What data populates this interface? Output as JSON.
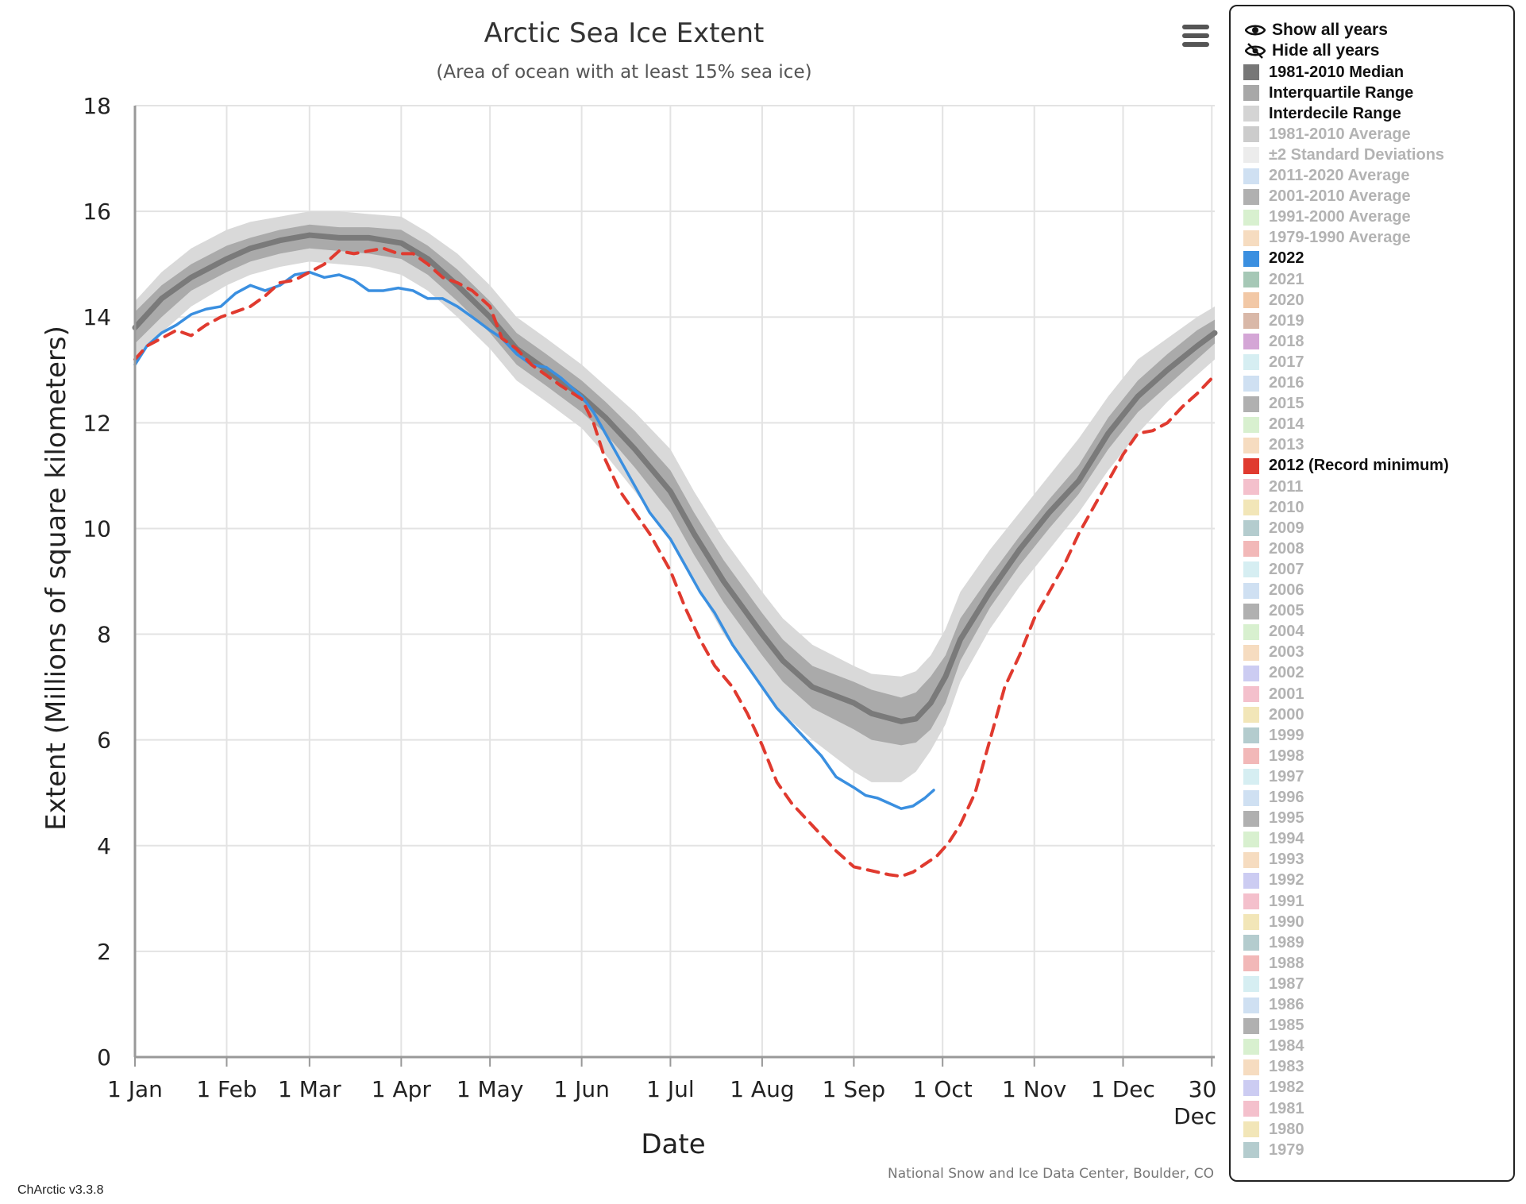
{
  "chart_data": {
    "type": "line",
    "title": "Arctic Sea Ice Extent",
    "subtitle": "(Area of ocean with at least 15% sea ice)",
    "xlabel": "Date",
    "ylabel": "Extent (Millions of square kilometers)",
    "credit": "National Snow and Ice Data Center, Boulder, CO",
    "xlim": [
      1,
      366
    ],
    "ylim": [
      0,
      18
    ],
    "yticks": [
      0,
      2,
      4,
      6,
      8,
      10,
      12,
      14,
      16,
      18
    ],
    "xticks": [
      {
        "day": 1,
        "label": "1 Jan"
      },
      {
        "day": 32,
        "label": "1 Feb"
      },
      {
        "day": 60,
        "label": "1 Mar"
      },
      {
        "day": 91,
        "label": "1 Apr"
      },
      {
        "day": 121,
        "label": "1 May"
      },
      {
        "day": 152,
        "label": "1 Jun"
      },
      {
        "day": 182,
        "label": "1 Jul"
      },
      {
        "day": 213,
        "label": "1 Aug"
      },
      {
        "day": 244,
        "label": "1 Sep"
      },
      {
        "day": 274,
        "label": "1 Oct"
      },
      {
        "day": 305,
        "label": "1 Nov"
      },
      {
        "day": 335,
        "label": "1 Dec"
      },
      {
        "day": 365,
        "label": "30 Dec"
      }
    ],
    "grid": true,
    "legend_position": "right",
    "median": {
      "name": "1981-2010 Median",
      "color": "#7a7a7a",
      "x": [
        1,
        10,
        20,
        32,
        40,
        50,
        60,
        70,
        80,
        91,
        100,
        110,
        121,
        130,
        140,
        152,
        160,
        170,
        182,
        190,
        200,
        213,
        220,
        230,
        244,
        250,
        260,
        265,
        270,
        275,
        280,
        290,
        300,
        310,
        320,
        330,
        340,
        350,
        360,
        366
      ],
      "y": [
        13.8,
        14.35,
        14.75,
        15.1,
        15.3,
        15.45,
        15.55,
        15.5,
        15.5,
        15.4,
        15.1,
        14.6,
        14.0,
        13.4,
        13.0,
        12.5,
        12.1,
        11.5,
        10.7,
        9.9,
        9.0,
        8.0,
        7.5,
        7.0,
        6.7,
        6.5,
        6.35,
        6.4,
        6.7,
        7.2,
        7.9,
        8.8,
        9.6,
        10.3,
        10.9,
        11.8,
        12.5,
        13.0,
        13.45,
        13.7
      ]
    },
    "interquartile": {
      "name": "Interquartile Range",
      "color": "#aaaaaa",
      "x": [
        1,
        10,
        20,
        32,
        40,
        50,
        60,
        70,
        80,
        91,
        100,
        110,
        121,
        130,
        140,
        152,
        160,
        170,
        182,
        190,
        200,
        213,
        220,
        230,
        244,
        250,
        260,
        265,
        270,
        275,
        280,
        290,
        300,
        310,
        320,
        330,
        340,
        350,
        360,
        366
      ],
      "lower": [
        13.5,
        14.0,
        14.5,
        14.85,
        15.05,
        15.2,
        15.3,
        15.25,
        15.2,
        15.1,
        14.8,
        14.3,
        13.7,
        13.1,
        12.7,
        12.2,
        11.8,
        11.15,
        10.3,
        9.5,
        8.6,
        7.6,
        7.1,
        6.6,
        6.2,
        6.0,
        5.9,
        5.95,
        6.2,
        6.7,
        7.5,
        8.5,
        9.3,
        10.0,
        10.65,
        11.5,
        12.2,
        12.7,
        13.2,
        13.5
      ],
      "upper": [
        14.1,
        14.6,
        15.0,
        15.35,
        15.5,
        15.65,
        15.75,
        15.7,
        15.7,
        15.65,
        15.35,
        14.9,
        14.3,
        13.7,
        13.3,
        12.8,
        12.4,
        11.85,
        11.1,
        10.3,
        9.4,
        8.4,
        7.9,
        7.4,
        7.1,
        6.95,
        6.8,
        6.9,
        7.2,
        7.6,
        8.3,
        9.1,
        9.85,
        10.55,
        11.2,
        12.1,
        12.8,
        13.3,
        13.75,
        13.95
      ]
    },
    "interdecile": {
      "name": "Interdecile Range",
      "color": "#d9d9d9",
      "x": [
        1,
        10,
        20,
        32,
        40,
        50,
        60,
        70,
        80,
        91,
        100,
        110,
        121,
        130,
        140,
        152,
        160,
        170,
        182,
        190,
        200,
        213,
        220,
        230,
        244,
        250,
        260,
        265,
        270,
        275,
        280,
        290,
        300,
        310,
        320,
        330,
        340,
        350,
        360,
        366
      ],
      "lower": [
        13.2,
        13.7,
        14.2,
        14.6,
        14.8,
        14.95,
        15.05,
        15.0,
        14.95,
        14.8,
        14.5,
        14.0,
        13.4,
        12.8,
        12.4,
        11.9,
        11.4,
        10.7,
        9.8,
        9.0,
        8.0,
        7.0,
        6.5,
        6.0,
        5.4,
        5.2,
        5.2,
        5.4,
        5.8,
        6.3,
        7.1,
        8.1,
        8.9,
        9.6,
        10.3,
        11.1,
        11.8,
        12.4,
        12.9,
        13.2
      ],
      "upper": [
        14.3,
        14.85,
        15.3,
        15.65,
        15.8,
        15.9,
        16.0,
        16.0,
        15.95,
        15.9,
        15.6,
        15.2,
        14.6,
        14.0,
        13.6,
        13.1,
        12.7,
        12.2,
        11.5,
        10.7,
        9.8,
        8.8,
        8.3,
        7.8,
        7.4,
        7.25,
        7.2,
        7.3,
        7.6,
        8.1,
        8.8,
        9.6,
        10.3,
        11.0,
        11.7,
        12.5,
        13.2,
        13.6,
        14.0,
        14.2
      ]
    },
    "series": [
      {
        "name": "2022",
        "color": "#3a8fe0",
        "dashed": false,
        "x": [
          1,
          5,
          10,
          15,
          20,
          25,
          30,
          35,
          40,
          45,
          50,
          55,
          60,
          65,
          70,
          75,
          80,
          85,
          90,
          95,
          100,
          105,
          110,
          115,
          121,
          125,
          130,
          135,
          140,
          145,
          152,
          156,
          160,
          165,
          170,
          175,
          182,
          187,
          192,
          197,
          203,
          208,
          213,
          218,
          223,
          228,
          233,
          238,
          244,
          248,
          252,
          256,
          260,
          264,
          268,
          271
        ],
        "y": [
          13.1,
          13.45,
          13.7,
          13.85,
          14.05,
          14.15,
          14.2,
          14.45,
          14.6,
          14.5,
          14.6,
          14.8,
          14.85,
          14.75,
          14.8,
          14.7,
          14.5,
          14.5,
          14.55,
          14.5,
          14.35,
          14.35,
          14.2,
          14.0,
          13.75,
          13.6,
          13.3,
          13.1,
          13.05,
          12.85,
          12.5,
          12.2,
          11.8,
          11.3,
          10.8,
          10.3,
          9.8,
          9.3,
          8.8,
          8.4,
          7.8,
          7.4,
          7.0,
          6.6,
          6.3,
          6.0,
          5.7,
          5.3,
          5.1,
          4.95,
          4.9,
          4.8,
          4.7,
          4.75,
          4.9,
          5.05
        ]
      },
      {
        "name": "2012 (Record minimum)",
        "color": "#e03a2f",
        "dashed": true,
        "x": [
          1,
          5,
          10,
          15,
          20,
          25,
          30,
          35,
          40,
          45,
          50,
          55,
          60,
          65,
          70,
          75,
          80,
          85,
          90,
          95,
          100,
          105,
          110,
          115,
          121,
          125,
          130,
          135,
          140,
          145,
          152,
          156,
          160,
          165,
          170,
          175,
          182,
          187,
          192,
          197,
          203,
          208,
          213,
          218,
          223,
          228,
          233,
          238,
          244,
          248,
          252,
          256,
          260,
          264,
          268,
          272,
          276,
          280,
          285,
          290,
          295,
          300,
          305,
          310,
          315,
          320,
          325,
          330,
          335,
          340,
          345,
          350,
          355,
          360,
          366
        ],
        "y": [
          13.2,
          13.45,
          13.6,
          13.75,
          13.65,
          13.85,
          14.0,
          14.1,
          14.2,
          14.4,
          14.65,
          14.7,
          14.85,
          15.0,
          15.25,
          15.2,
          15.25,
          15.3,
          15.2,
          15.2,
          15.0,
          14.75,
          14.65,
          14.5,
          14.2,
          13.6,
          13.4,
          13.1,
          12.9,
          12.7,
          12.45,
          12.0,
          11.3,
          10.7,
          10.3,
          9.9,
          9.2,
          8.5,
          7.9,
          7.4,
          7.0,
          6.5,
          5.9,
          5.2,
          4.8,
          4.5,
          4.2,
          3.9,
          3.6,
          3.55,
          3.5,
          3.45,
          3.42,
          3.5,
          3.65,
          3.8,
          4.05,
          4.4,
          5.0,
          6.0,
          7.0,
          7.6,
          8.3,
          8.8,
          9.3,
          9.9,
          10.4,
          10.9,
          11.4,
          11.8,
          11.85,
          12.0,
          12.3,
          12.55,
          12.9
        ]
      }
    ]
  },
  "menu": {
    "label": "Chart context menu"
  },
  "legend": {
    "show_all": "Show all years",
    "hide_all": "Hide all years",
    "items": [
      {
        "label": "1981-2010 Median",
        "color": "#777777",
        "active": true
      },
      {
        "label": "Interquartile Range",
        "color": "#a8a8a8",
        "active": true
      },
      {
        "label": "Interdecile Range",
        "color": "#d4d4d4",
        "active": true
      },
      {
        "label": "1981-2010 Average",
        "color": "#cccccc",
        "active": false
      },
      {
        "label": "±2 Standard Deviations",
        "color": "#ececec",
        "active": false
      },
      {
        "label": "2011-2020 Average",
        "color": "#cfe0f2",
        "active": false
      },
      {
        "label": "2001-2010 Average",
        "color": "#b0b0b0",
        "active": false
      },
      {
        "label": "1991-2000 Average",
        "color": "#d8f0cf",
        "active": false
      },
      {
        "label": "1979-1990 Average",
        "color": "#f6dcc0",
        "active": false
      },
      {
        "label": "2022",
        "color": "#3a8fe0",
        "active": true
      },
      {
        "label": "2021",
        "color": "#a6c8b6",
        "active": false
      },
      {
        "label": "2020",
        "color": "#f2c8a6",
        "active": false
      },
      {
        "label": "2019",
        "color": "#d9b8a8",
        "active": false
      },
      {
        "label": "2018",
        "color": "#d4a6d6",
        "active": false
      },
      {
        "label": "2017",
        "color": "#d6eef2",
        "active": false
      },
      {
        "label": "2016",
        "color": "#cfe0f2",
        "active": false
      },
      {
        "label": "2015",
        "color": "#b0b0b0",
        "active": false
      },
      {
        "label": "2014",
        "color": "#d8f0cf",
        "active": false
      },
      {
        "label": "2013",
        "color": "#f6dcc0",
        "active": false
      },
      {
        "label": "2012 (Record minimum)",
        "color": "#e03a2f",
        "active": true
      },
      {
        "label": "2011",
        "color": "#f4c0cc",
        "active": false
      },
      {
        "label": "2010",
        "color": "#f2e6b8",
        "active": false
      },
      {
        "label": "2009",
        "color": "#b4ccce",
        "active": false
      },
      {
        "label": "2008",
        "color": "#f2b8b8",
        "active": false
      },
      {
        "label": "2007",
        "color": "#d6eef2",
        "active": false
      },
      {
        "label": "2006",
        "color": "#cfe0f2",
        "active": false
      },
      {
        "label": "2005",
        "color": "#b0b0b0",
        "active": false
      },
      {
        "label": "2004",
        "color": "#d8f0cf",
        "active": false
      },
      {
        "label": "2003",
        "color": "#f6dcc0",
        "active": false
      },
      {
        "label": "2002",
        "color": "#ccccf2",
        "active": false
      },
      {
        "label": "2001",
        "color": "#f4c0cc",
        "active": false
      },
      {
        "label": "2000",
        "color": "#f2e6b8",
        "active": false
      },
      {
        "label": "1999",
        "color": "#b4ccce",
        "active": false
      },
      {
        "label": "1998",
        "color": "#f2b8b8",
        "active": false
      },
      {
        "label": "1997",
        "color": "#d6eef2",
        "active": false
      },
      {
        "label": "1996",
        "color": "#cfe0f2",
        "active": false
      },
      {
        "label": "1995",
        "color": "#b0b0b0",
        "active": false
      },
      {
        "label": "1994",
        "color": "#d8f0cf",
        "active": false
      },
      {
        "label": "1993",
        "color": "#f6dcc0",
        "active": false
      },
      {
        "label": "1992",
        "color": "#ccccf2",
        "active": false
      },
      {
        "label": "1991",
        "color": "#f4c0cc",
        "active": false
      },
      {
        "label": "1990",
        "color": "#f2e6b8",
        "active": false
      },
      {
        "label": "1989",
        "color": "#b4ccce",
        "active": false
      },
      {
        "label": "1988",
        "color": "#f2b8b8",
        "active": false
      },
      {
        "label": "1987",
        "color": "#d6eef2",
        "active": false
      },
      {
        "label": "1986",
        "color": "#cfe0f2",
        "active": false
      },
      {
        "label": "1985",
        "color": "#b0b0b0",
        "active": false
      },
      {
        "label": "1984",
        "color": "#d8f0cf",
        "active": false
      },
      {
        "label": "1983",
        "color": "#f6dcc0",
        "active": false
      },
      {
        "label": "1982",
        "color": "#ccccf2",
        "active": false
      },
      {
        "label": "1981",
        "color": "#f4c0cc",
        "active": false
      },
      {
        "label": "1980",
        "color": "#f2e6b8",
        "active": false
      },
      {
        "label": "1979",
        "color": "#b4ccce",
        "active": false
      }
    ]
  },
  "footer": {
    "version": "ChArctic v3.3.8"
  }
}
